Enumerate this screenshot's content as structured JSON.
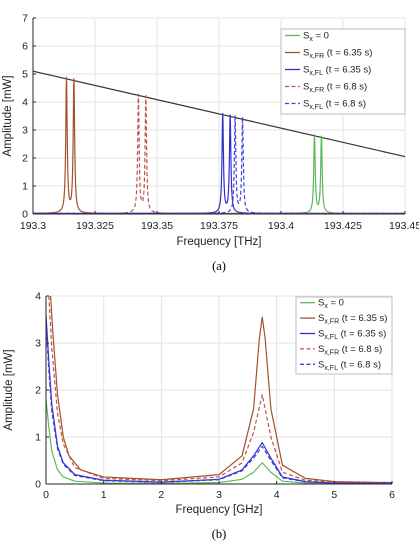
{
  "chart_data": [
    {
      "id": "a",
      "type": "line",
      "caption": "(a)",
      "xlabel": "Frequency [THz]",
      "ylabel": "Amplitude [mW]",
      "xlim": [
        193.3,
        193.45
      ],
      "ylim": [
        0,
        7
      ],
      "xticks": [
        193.3,
        193.325,
        193.35,
        193.375,
        193.4,
        193.425,
        193.45
      ],
      "xtick_labels": [
        "193.3",
        "193.325",
        "193.35",
        "193.375",
        "193.4",
        "193.425",
        "193.45"
      ],
      "yticks": [
        0,
        1,
        2,
        3,
        4,
        5,
        6,
        7
      ],
      "grid": true,
      "legend_position": "top-right",
      "envelope_line": {
        "color": "#333333",
        "x": [
          193.3,
          193.45
        ],
        "y": [
          5.1,
          2.05
        ]
      },
      "series": [
        {
          "name_main": "S",
          "name_sub": "x",
          "name_rest": " = 0",
          "color": "#5cb85c",
          "dashed": false,
          "peaks_x": [
            193.4135,
            193.4163
          ],
          "peaks_y": [
            2.78,
            2.72
          ],
          "width": 0.00035
        },
        {
          "name_main": "S",
          "name_sub": "x,FR",
          "name_rest": " (t = 6.35 s)",
          "color": "#a0522d",
          "dashed": false,
          "peaks_x": [
            193.3135,
            193.3165
          ],
          "peaks_y": [
            4.8,
            4.75
          ],
          "width": 0.00035
        },
        {
          "name_main": "S",
          "name_sub": "x,FL",
          "name_rest": " (t = 6.35 s)",
          "color": "#3030c8",
          "dashed": false,
          "peaks_x": [
            193.3765,
            193.3795
          ],
          "peaks_y": [
            3.52,
            3.47
          ],
          "width": 0.00035
        },
        {
          "name_main": "S",
          "name_sub": "x,FR",
          "name_rest": " (t = 6.8 s)",
          "color": "#c0504d",
          "dashed": true,
          "peaks_x": [
            193.3425,
            193.3455
          ],
          "peaks_y": [
            4.2,
            4.15
          ],
          "width": 0.00035
        },
        {
          "name_main": "S",
          "name_sub": "x,FL",
          "name_rest": " (t = 6.8 s)",
          "color": "#4040e0",
          "dashed": true,
          "peaks_x": [
            193.3815,
            193.3845
          ],
          "peaks_y": [
            3.44,
            3.4
          ],
          "width": 0.00035
        }
      ]
    },
    {
      "id": "b",
      "type": "line",
      "caption": "(b)",
      "xlabel": "Frequency [GHz]",
      "ylabel": "Amplitude [mW]",
      "xlim": [
        0,
        6
      ],
      "ylim": [
        0,
        4
      ],
      "xticks": [
        0,
        1,
        2,
        3,
        4,
        5,
        6
      ],
      "xtick_labels": [
        "0",
        "1",
        "2",
        "3",
        "4",
        "5",
        "6"
      ],
      "yticks": [
        0,
        1,
        2,
        3,
        4
      ],
      "grid": true,
      "legend_position": "top-right",
      "series": [
        {
          "name_main": "S",
          "name_sub": "x",
          "name_rest": " = 0",
          "color": "#5cb85c",
          "dashed": false,
          "x": [
            0,
            0.05,
            0.1,
            0.2,
            0.3,
            0.5,
            1,
            2,
            3,
            3.4,
            3.6,
            3.75,
            3.9,
            4.1,
            4.5,
            5,
            6
          ],
          "y": [
            1.8,
            1.2,
            0.7,
            0.3,
            0.15,
            0.06,
            0.02,
            0.01,
            0.03,
            0.1,
            0.25,
            0.45,
            0.25,
            0.06,
            0.02,
            0.01,
            0.01
          ]
        },
        {
          "name_main": "S",
          "name_sub": "x,FR",
          "name_rest": " (t = 6.35 s)",
          "color": "#a0522d",
          "dashed": false,
          "x": [
            0.08,
            0.12,
            0.2,
            0.3,
            0.4,
            0.6,
            1,
            2,
            3,
            3.4,
            3.6,
            3.7,
            3.75,
            3.8,
            3.9,
            4.1,
            4.5,
            5,
            6
          ],
          "y": [
            4.0,
            3.2,
            1.9,
            1.0,
            0.6,
            0.3,
            0.15,
            0.09,
            0.2,
            0.6,
            1.6,
            3.1,
            3.55,
            3.1,
            1.6,
            0.4,
            0.12,
            0.05,
            0.03
          ]
        },
        {
          "name_main": "S",
          "name_sub": "x,FL",
          "name_rest": " (t = 6.35 s)",
          "color": "#3030c8",
          "dashed": false,
          "x": [
            0,
            0.05,
            0.1,
            0.2,
            0.3,
            0.5,
            1,
            2,
            3,
            3.4,
            3.6,
            3.75,
            3.9,
            4.1,
            4.5,
            5,
            6
          ],
          "y": [
            3.6,
            2.6,
            1.7,
            0.8,
            0.45,
            0.2,
            0.08,
            0.04,
            0.1,
            0.3,
            0.6,
            0.88,
            0.55,
            0.15,
            0.05,
            0.02,
            0.02
          ]
        },
        {
          "name_main": "S",
          "name_sub": "x,FR",
          "name_rest": " (t = 6.8 s)",
          "color": "#c0504d",
          "dashed": true,
          "x": [
            0.05,
            0.1,
            0.2,
            0.3,
            0.5,
            1,
            2,
            3,
            3.4,
            3.6,
            3.75,
            3.9,
            4.1,
            4.5,
            5,
            6
          ],
          "y": [
            4.0,
            2.9,
            1.5,
            0.85,
            0.35,
            0.12,
            0.07,
            0.15,
            0.45,
            1.1,
            1.9,
            1.0,
            0.25,
            0.08,
            0.04,
            0.02
          ]
        },
        {
          "name_main": "S",
          "name_sub": "x,FL",
          "name_rest": " (t = 6.8 s)",
          "color": "#4040e0",
          "dashed": true,
          "x": [
            0,
            0.05,
            0.1,
            0.2,
            0.3,
            0.5,
            1,
            2,
            3,
            3.4,
            3.6,
            3.75,
            3.9,
            4.1,
            4.5,
            5,
            6
          ],
          "y": [
            3.4,
            2.4,
            1.55,
            0.75,
            0.42,
            0.18,
            0.07,
            0.035,
            0.09,
            0.28,
            0.55,
            0.8,
            0.5,
            0.13,
            0.045,
            0.02,
            0.02
          ]
        }
      ]
    }
  ]
}
